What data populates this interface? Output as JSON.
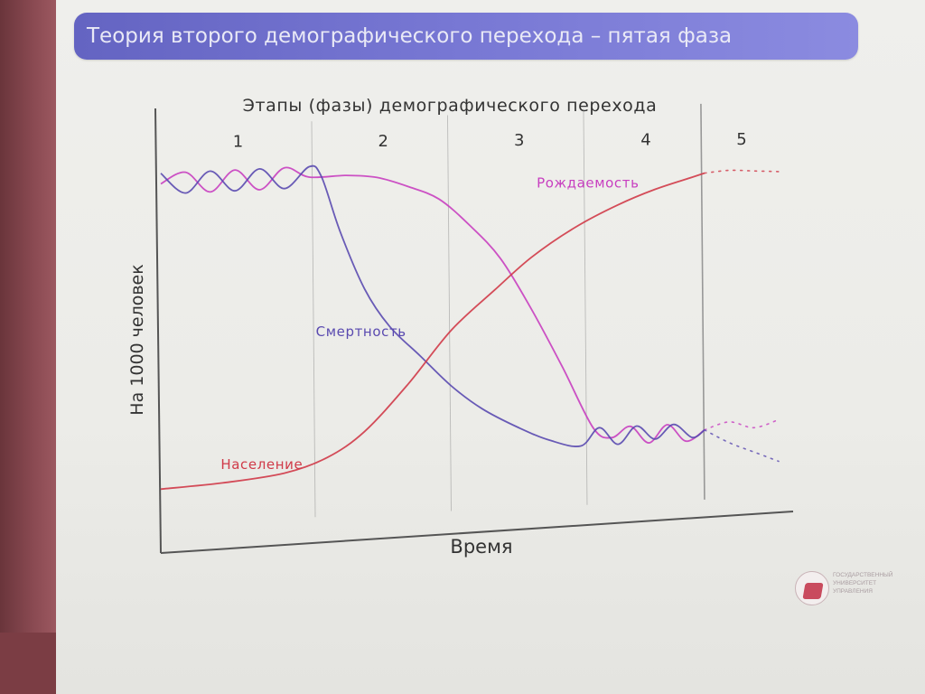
{
  "slide": {
    "title": "Теория второго демографического перехода – пятая фаза",
    "logo_lines": [
      "ГОСУДАРСТВЕННЫЙ",
      "УНИВЕРСИТЕТ",
      "УПРАВЛЕНИЯ"
    ]
  },
  "colors": {
    "title_bar": "#7070cc",
    "birth_rate": "#c83fc0",
    "death_rate": "#5a4ab0",
    "population": "#d03a48",
    "axis": "#555555",
    "stage_divider": "#8a8a8a"
  },
  "chart_data": {
    "type": "line",
    "title": "Этапы (фазы) демографического перехода",
    "xlabel": "Время",
    "ylabel": "На 1000 человек",
    "xlim": [
      0,
      100
    ],
    "ylim": [
      0,
      100
    ],
    "grid": false,
    "legend": "none",
    "stages": [
      "1",
      "2",
      "3",
      "4",
      "5"
    ],
    "stage_boundaries": [
      25,
      47,
      69,
      88
    ],
    "series": [
      {
        "name": "Рождаемость",
        "points": [
          [
            0,
            96
          ],
          [
            4,
            99
          ],
          [
            8,
            93
          ],
          [
            12,
            99
          ],
          [
            16,
            93
          ],
          [
            20,
            99
          ],
          [
            24,
            96
          ],
          [
            30,
            96
          ],
          [
            35,
            95
          ],
          [
            40,
            92
          ],
          [
            45,
            88
          ],
          [
            50,
            80
          ],
          [
            55,
            70
          ],
          [
            60,
            55
          ],
          [
            65,
            38
          ],
          [
            70,
            20
          ],
          [
            73,
            17
          ],
          [
            76,
            20
          ],
          [
            79,
            15
          ],
          [
            82,
            20
          ],
          [
            85,
            15
          ],
          [
            88,
            18
          ]
        ],
        "projection": [
          [
            88,
            18
          ],
          [
            92,
            20
          ],
          [
            96,
            18
          ],
          [
            100,
            20
          ]
        ]
      },
      {
        "name": "Смертность",
        "points": [
          [
            0,
            99
          ],
          [
            4,
            93
          ],
          [
            8,
            99
          ],
          [
            12,
            93
          ],
          [
            16,
            99
          ],
          [
            20,
            93
          ],
          [
            24,
            99
          ],
          [
            26,
            96
          ],
          [
            29,
            80
          ],
          [
            33,
            63
          ],
          [
            37,
            52
          ],
          [
            42,
            43
          ],
          [
            47,
            34
          ],
          [
            52,
            27
          ],
          [
            58,
            21
          ],
          [
            63,
            17
          ],
          [
            68,
            15
          ],
          [
            71,
            20
          ],
          [
            74,
            15
          ],
          [
            77,
            20
          ],
          [
            80,
            16
          ],
          [
            83,
            20
          ],
          [
            86,
            16
          ],
          [
            88,
            18
          ]
        ],
        "projection": [
          [
            88,
            18
          ],
          [
            92,
            14
          ],
          [
            96,
            11
          ],
          [
            100,
            8
          ]
        ]
      },
      {
        "name": "Население",
        "points": [
          [
            0,
            8
          ],
          [
            10,
            9
          ],
          [
            20,
            11
          ],
          [
            27,
            15
          ],
          [
            33,
            22
          ],
          [
            40,
            35
          ],
          [
            47,
            50
          ],
          [
            54,
            61
          ],
          [
            60,
            70
          ],
          [
            67,
            78
          ],
          [
            74,
            84
          ],
          [
            80,
            88
          ],
          [
            86,
            91
          ],
          [
            88,
            92
          ]
        ],
        "projection": [
          [
            88,
            92
          ],
          [
            92,
            92.5
          ],
          [
            96,
            92
          ],
          [
            100,
            91.5
          ]
        ]
      }
    ],
    "annotations": [
      {
        "text": "Рождаемость",
        "series": "Рождаемость"
      },
      {
        "text": "Смертность",
        "series": "Смертность"
      },
      {
        "text": "Население",
        "series": "Население"
      }
    ]
  }
}
